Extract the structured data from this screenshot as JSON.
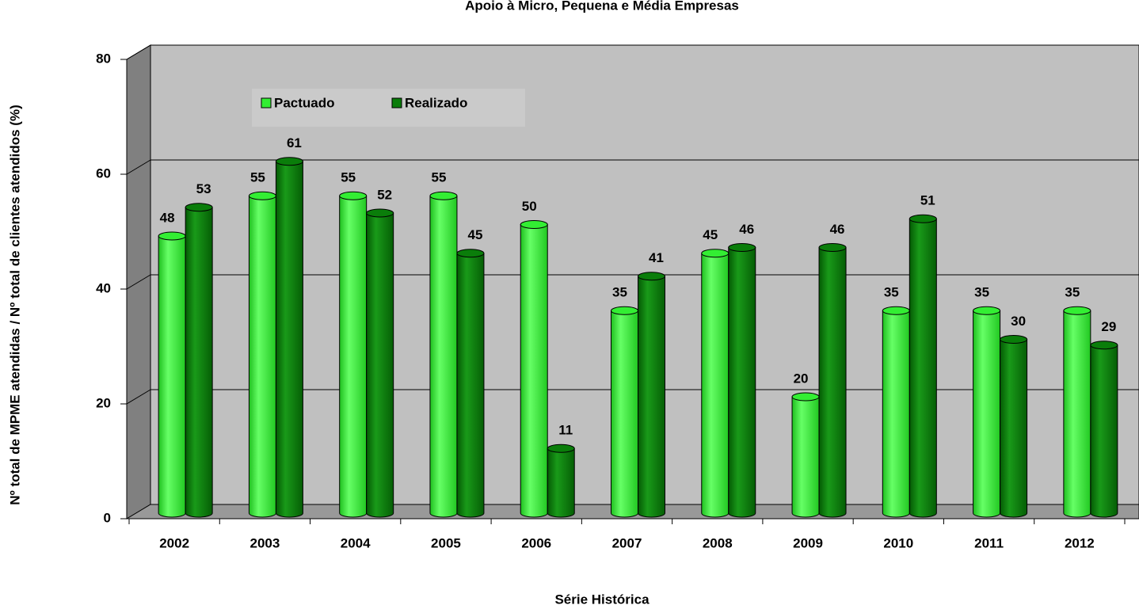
{
  "chart_data": {
    "type": "bar3d",
    "title": "Apoio à Micro, Pequena e Média Empresas",
    "y_label": "Nº total de MPME atendidas / Nº total de clientes atendidos (%)",
    "x_label": "Série Histórica",
    "categories": [
      "2002",
      "2003",
      "2004",
      "2005",
      "2006",
      "2007",
      "2008",
      "2009",
      "2010",
      "2011",
      "2012"
    ],
    "series": [
      {
        "name": "Pactuado",
        "color": "#33ee33",
        "values": [
          48,
          55,
          55,
          55,
          50,
          35,
          45,
          20,
          35,
          35,
          35
        ]
      },
      {
        "name": "Realizado",
        "color": "#0a7d0a",
        "values": [
          53,
          61,
          52,
          45,
          11,
          41,
          46,
          46,
          51,
          30,
          29
        ]
      }
    ],
    "ylim": [
      0,
      80
    ],
    "yticks": [
      0,
      20,
      40,
      60,
      80
    ],
    "grid": true,
    "legend": "top-left"
  }
}
